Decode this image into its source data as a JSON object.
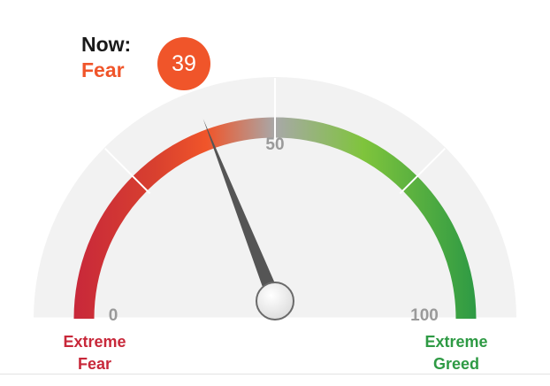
{
  "gauge": {
    "min": 0,
    "max": 100,
    "value": 39,
    "value_label": "39",
    "current_label": "Now:",
    "current_rating": "Fear",
    "tick_labels": {
      "low": "0",
      "mid": "50",
      "high": "100"
    },
    "ends": {
      "left": [
        "Extreme",
        "Fear"
      ],
      "right": [
        "Extreme",
        "Greed"
      ]
    },
    "colors": {
      "extreme_fear": "#c8283a",
      "fear": "#f0552a",
      "neutral": "#a8a8a8",
      "greed": "#7fc43c",
      "extreme_greed": "#2e9a44",
      "needle": "#555555",
      "dial_background": "#f2f2f2"
    }
  }
}
